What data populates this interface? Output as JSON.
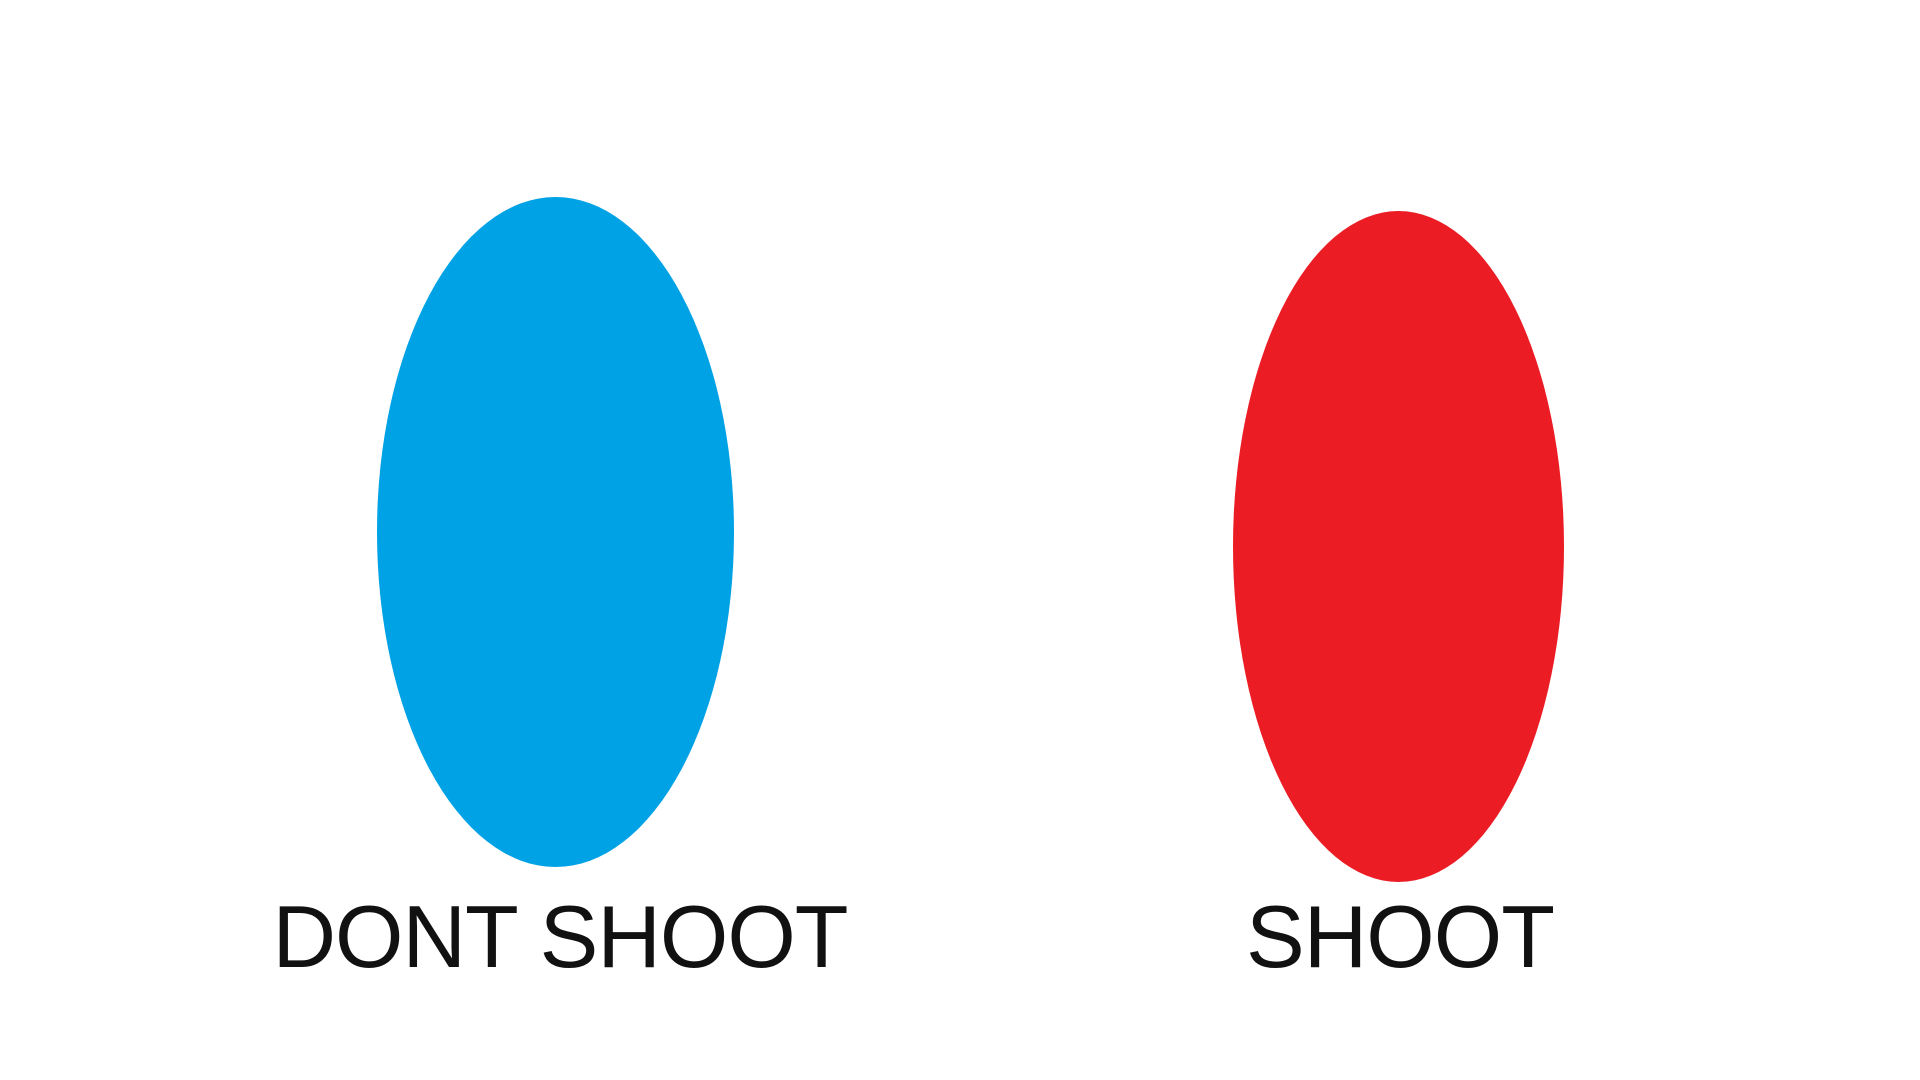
{
  "targets": [
    {
      "id": "dont_shoot",
      "label": "DONT SHOOT",
      "color": "#00A2E6",
      "shape": "ellipse"
    },
    {
      "id": "shoot",
      "label": "SHOOT",
      "color": "#EC1C24",
      "shape": "ellipse"
    }
  ],
  "background_color": "#FFFFFF"
}
